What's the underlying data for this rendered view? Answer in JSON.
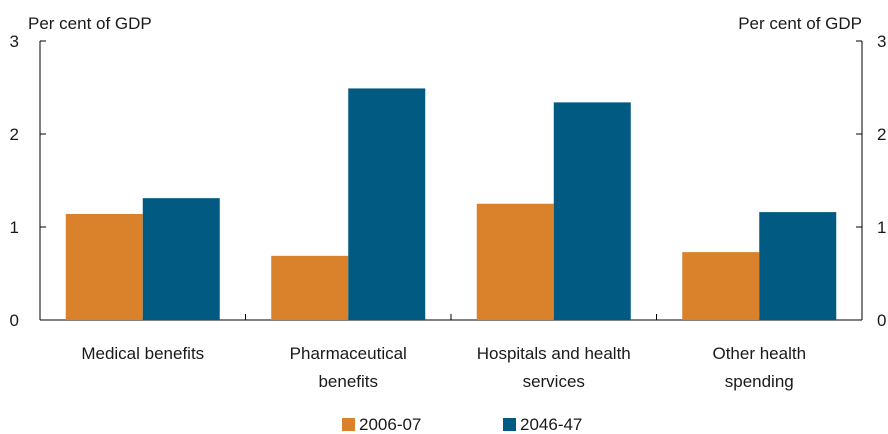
{
  "chart_data": {
    "type": "bar",
    "ylabel_left": "Per cent of GDP",
    "ylabel_right": "Per cent of GDP",
    "ylim": [
      0,
      3
    ],
    "yticks": [
      0,
      1,
      2,
      3
    ],
    "categories": [
      [
        "Medical benefits"
      ],
      [
        "Pharmaceutical",
        "benefits"
      ],
      [
        "Hospitals and health",
        "services"
      ],
      [
        "Other health",
        "spending"
      ]
    ],
    "series": [
      {
        "name": "2006-07",
        "color": "#d9822b",
        "values": [
          1.14,
          0.69,
          1.25,
          0.73
        ]
      },
      {
        "name": "2046-47",
        "color": "#005a82",
        "values": [
          1.31,
          2.49,
          2.34,
          1.16
        ]
      }
    ],
    "grid": false,
    "legend_position": "bottom-center"
  }
}
